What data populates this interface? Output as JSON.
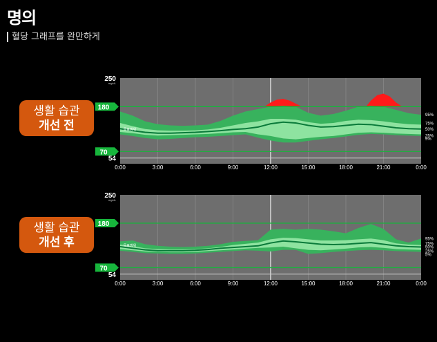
{
  "header": {
    "logo_text": "명의",
    "subtitle": "혈당 그래프를 완만하게"
  },
  "chart_data": [
    {
      "type": "area",
      "panel_label": [
        "생활 습관",
        "개선 전"
      ],
      "x_ticks": [
        "0:00",
        "3:00",
        "6:00",
        "9:00",
        "12:00",
        "15:00",
        "18:00",
        "21:00",
        "0:00"
      ],
      "xlim": [
        0,
        24
      ],
      "ylim": [
        40,
        250
      ],
      "y_ticks": [
        54,
        70,
        180,
        250
      ],
      "y_unit": "mg/dL",
      "target_range": [
        70,
        180
      ],
      "target_range_label": "목표범위",
      "percentile_labels": [
        "95%",
        "75%",
        "50%",
        "25%",
        "5%"
      ],
      "x": [
        0,
        1,
        2,
        3,
        4,
        5,
        6,
        7,
        8,
        9,
        10,
        11,
        12,
        13,
        14,
        15,
        16,
        17,
        18,
        19,
        20,
        21,
        22,
        23,
        24
      ],
      "series": [
        {
          "name": "95%",
          "values": [
            168,
            158,
            144,
            137,
            134,
            133,
            134,
            136,
            145,
            158,
            168,
            174,
            180,
            182,
            180,
            165,
            158,
            162,
            170,
            180,
            182,
            180,
            172,
            164,
            160
          ]
        },
        {
          "name": "75%",
          "values": [
            140,
            132,
            125,
            122,
            121,
            121,
            122,
            124,
            128,
            134,
            140,
            144,
            150,
            150,
            148,
            142,
            138,
            140,
            145,
            148,
            147,
            144,
            140,
            137,
            136
          ]
        },
        {
          "name": "50%",
          "values": [
            126,
            121,
            117,
            115,
            115,
            116,
            117,
            119,
            121,
            124,
            126,
            130,
            138,
            142,
            140,
            134,
            130,
            131,
            134,
            137,
            136,
            132,
            128,
            126,
            125
          ]
        },
        {
          "name": "25%",
          "values": [
            118,
            115,
            111,
            109,
            110,
            111,
            112,
            113,
            115,
            117,
            118,
            112,
            108,
            102,
            100,
            103,
            106,
            108,
            112,
            116,
            117,
            116,
            114,
            113,
            112
          ]
        },
        {
          "name": "5%",
          "values": [
            112,
            108,
            103,
            100,
            101,
            103,
            105,
            106,
            108,
            110,
            112,
            104,
            97,
            92,
            92,
            96,
            100,
            103,
            107,
            111,
            113,
            112,
            110,
            109,
            108
          ]
        }
      ],
      "high_excursions": [
        {
          "x": [
            11.5,
            12,
            12.5,
            13,
            13.5,
            14.5
          ],
          "values": [
            180,
            190,
            197,
            199,
            195,
            180
          ]
        },
        {
          "x": [
            19.6,
            20,
            20.5,
            21,
            21.5,
            22,
            22.5
          ],
          "values": [
            180,
            195,
            208,
            212,
            205,
            190,
            180
          ]
        }
      ],
      "colors": {
        "outer_band": "#38b25d",
        "inner_band": "#8ee3a0",
        "median": "#0a7a3a",
        "above_range": "#ff1a1a",
        "plot_bg": "#6e6e6e",
        "target_line": "#17b53c"
      }
    },
    {
      "type": "area",
      "panel_label": [
        "생활 습관",
        "개선 후"
      ],
      "x_ticks": [
        "0:00",
        "3:00",
        "6:00",
        "9:00",
        "12:00",
        "15:00",
        "18:00",
        "21:00",
        "0:00"
      ],
      "xlim": [
        0,
        24
      ],
      "ylim": [
        40,
        250
      ],
      "y_ticks": [
        54,
        70,
        180,
        250
      ],
      "y_unit": "mg/dL",
      "target_range": [
        70,
        180
      ],
      "target_range_label": "목표범위",
      "percentile_labels": [
        "95%",
        "75%",
        "50%",
        "25%",
        "5%"
      ],
      "x": [
        0,
        1,
        2,
        3,
        4,
        5,
        6,
        7,
        8,
        9,
        10,
        11,
        12,
        13,
        14,
        15,
        16,
        17,
        18,
        19,
        20,
        21,
        22,
        23,
        24
      ],
      "series": [
        {
          "name": "95%",
          "values": [
            135,
            137,
            128,
            124,
            122,
            121,
            122,
            124,
            128,
            134,
            136,
            138,
            164,
            166,
            164,
            166,
            164,
            160,
            155,
            168,
            178,
            166,
            140,
            132,
            142
          ]
        },
        {
          "name": "75%",
          "values": [
            127,
            123,
            118,
            116,
            115,
            115,
            116,
            118,
            121,
            126,
            129,
            132,
            140,
            144,
            143,
            140,
            137,
            137,
            138,
            140,
            142,
            138,
            130,
            127,
            126
          ]
        },
        {
          "name": "50%",
          "values": [
            122,
            118,
            114,
            112,
            112,
            112,
            113,
            115,
            118,
            120,
            122,
            124,
            131,
            136,
            134,
            131,
            128,
            127,
            128,
            130,
            132,
            128,
            124,
            122,
            121
          ]
        },
        {
          "name": "25%",
          "values": [
            116,
            113,
            110,
            109,
            108,
            108,
            109,
            111,
            113,
            115,
            117,
            119,
            120,
            122,
            118,
            114,
            113,
            115,
            117,
            120,
            121,
            119,
            116,
            115,
            114
          ]
        },
        {
          "name": "5%",
          "values": [
            112,
            109,
            106,
            105,
            104,
            104,
            105,
            107,
            109,
            111,
            113,
            112,
            110,
            114,
            114,
            104,
            106,
            109,
            111,
            113,
            114,
            113,
            111,
            110,
            109
          ]
        }
      ],
      "high_excursions": [],
      "colors": {
        "outer_band": "#38b25d",
        "inner_band": "#8ee3a0",
        "median": "#0a7a3a",
        "above_range": "#ff1a1a",
        "plot_bg": "#6e6e6e",
        "target_line": "#17b53c"
      }
    }
  ]
}
